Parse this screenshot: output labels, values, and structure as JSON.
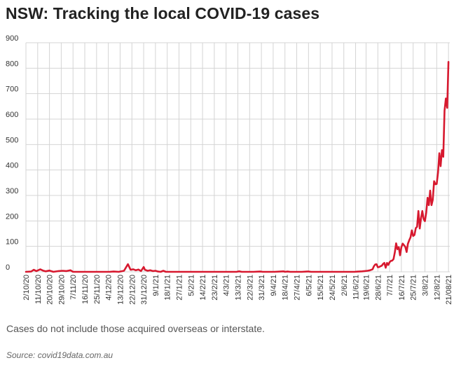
{
  "title": "NSW: Tracking the local COVID-19 cases",
  "note": "Cases do not include those acquired overseas or interstate.",
  "source": "Source: covid19data.com.au",
  "colors": {
    "line": "#d7192f",
    "grid": "#d4d4d4",
    "text": "#333333"
  },
  "chart_data": {
    "type": "line",
    "title": "NSW: Tracking the local COVID-19 cases",
    "xlabel": "",
    "ylabel": "",
    "ylim": [
      0,
      900
    ],
    "yticks": [
      0,
      100,
      200,
      300,
      400,
      500,
      600,
      700,
      800,
      900
    ],
    "xlim": [
      "2/10/20",
      "22/08/21"
    ],
    "grid": true,
    "legend": "none",
    "x_tick_labels": [
      "2/10/20",
      "11/10/20",
      "20/10/20",
      "29/10/20",
      "7/11/20",
      "16/11/20",
      "25/11/20",
      "4/12/20",
      "13/12/20",
      "22/12/20",
      "31/12/20",
      "9/1/21",
      "18/1/21",
      "27/1/21",
      "5/2/21",
      "14/2/21",
      "23/2/21",
      "4/3/21",
      "13/3/21",
      "22/3/21",
      "31/3/21",
      "9/4/21",
      "18/4/21",
      "27/4/21",
      "6/5/21",
      "15/5/21",
      "24/5/21",
      "2/6/21",
      "11/6/21",
      "19/6/21",
      "28/6/21",
      "7/7/21",
      "16/7/21",
      "25/7/21",
      "3/8/21",
      "12/8/21",
      "21/08/21"
    ],
    "series": [
      {
        "name": "",
        "color": "#d7192f",
        "points": [
          [
            "2/10/20",
            0
          ],
          [
            "6/10/20",
            1
          ],
          [
            "8/10/20",
            8
          ],
          [
            "10/10/20",
            3
          ],
          [
            "13/10/20",
            10
          ],
          [
            "15/10/20",
            5
          ],
          [
            "17/10/20",
            2
          ],
          [
            "20/10/20",
            5
          ],
          [
            "23/10/20",
            0
          ],
          [
            "27/10/20",
            3
          ],
          [
            "30/10/20",
            4
          ],
          [
            "2/11/20",
            3
          ],
          [
            "5/11/20",
            6
          ],
          [
            "7/11/20",
            0
          ],
          [
            "14/11/20",
            0
          ],
          [
            "22/11/20",
            0
          ],
          [
            "30/11/20",
            0
          ],
          [
            "5/12/20",
            0
          ],
          [
            "8/12/20",
            1
          ],
          [
            "12/12/20",
            0
          ],
          [
            "16/12/20",
            4
          ],
          [
            "19/12/20",
            30
          ],
          [
            "21/12/20",
            8
          ],
          [
            "23/12/20",
            10
          ],
          [
            "25/12/20",
            6
          ],
          [
            "27/12/20",
            9
          ],
          [
            "29/12/20",
            3
          ],
          [
            "31/12/20",
            19
          ],
          [
            "1/1/21",
            8
          ],
          [
            "3/1/21",
            4
          ],
          [
            "5/1/21",
            6
          ],
          [
            "7/1/21",
            3
          ],
          [
            "9/1/21",
            4
          ],
          [
            "11/1/21",
            1
          ],
          [
            "13/1/21",
            0
          ],
          [
            "15/1/21",
            4
          ],
          [
            "17/1/21",
            0
          ],
          [
            "20/1/21",
            0
          ],
          [
            "1/2/21",
            0
          ],
          [
            "10/2/21",
            0
          ],
          [
            "20/2/21",
            0
          ],
          [
            "1/3/21",
            0
          ],
          [
            "12/3/21",
            0
          ],
          [
            "14/3/21",
            2
          ],
          [
            "16/3/21",
            0
          ],
          [
            "25/3/21",
            0
          ],
          [
            "30/3/21",
            1
          ],
          [
            "1/4/21",
            0
          ],
          [
            "10/4/21",
            0
          ],
          [
            "17/4/21",
            2
          ],
          [
            "18/4/21",
            0
          ],
          [
            "20/4/21",
            1
          ],
          [
            "22/4/21",
            0
          ],
          [
            "1/5/21",
            0
          ],
          [
            "5/5/21",
            1
          ],
          [
            "6/5/21",
            1
          ],
          [
            "8/5/21",
            0
          ],
          [
            "20/5/21",
            0
          ],
          [
            "1/6/21",
            0
          ],
          [
            "10/6/21",
            0
          ],
          [
            "16/6/21",
            2
          ],
          [
            "18/6/21",
            3
          ],
          [
            "20/6/21",
            4
          ],
          [
            "22/6/21",
            6
          ],
          [
            "24/6/21",
            10
          ],
          [
            "25/6/21",
            22
          ],
          [
            "26/6/21",
            29
          ],
          [
            "27/6/21",
            30
          ],
          [
            "28/6/21",
            18
          ],
          [
            "29/6/21",
            19
          ],
          [
            "30/6/21",
            22
          ],
          [
            "1/7/21",
            24
          ],
          [
            "2/7/21",
            31
          ],
          [
            "3/7/21",
            35
          ],
          [
            "4/7/21",
            16
          ],
          [
            "5/7/21",
            35
          ],
          [
            "6/7/21",
            27
          ],
          [
            "7/7/21",
            38
          ],
          [
            "8/7/21",
            43
          ],
          [
            "9/7/21",
            44
          ],
          [
            "10/7/21",
            50
          ],
          [
            "11/7/21",
            77
          ],
          [
            "12/7/21",
            112
          ],
          [
            "13/7/21",
            89
          ],
          [
            "14/7/21",
            97
          ],
          [
            "15/7/21",
            65
          ],
          [
            "16/7/21",
            97
          ],
          [
            "17/7/21",
            111
          ],
          [
            "18/7/21",
            105
          ],
          [
            "19/7/21",
            98
          ],
          [
            "20/7/21",
            78
          ],
          [
            "21/7/21",
            110
          ],
          [
            "22/7/21",
            124
          ],
          [
            "23/7/21",
            136
          ],
          [
            "24/7/21",
            163
          ],
          [
            "25/7/21",
            141
          ],
          [
            "26/7/21",
            145
          ],
          [
            "27/7/21",
            172
          ],
          [
            "28/7/21",
            177
          ],
          [
            "29/7/21",
            239
          ],
          [
            "30/7/21",
            170
          ],
          [
            "31/7/21",
            210
          ],
          [
            "1/8/21",
            239
          ],
          [
            "2/8/21",
            207
          ],
          [
            "3/8/21",
            199
          ],
          [
            "4/8/21",
            233
          ],
          [
            "5/8/21",
            291
          ],
          [
            "6/8/21",
            262
          ],
          [
            "7/8/21",
            319
          ],
          [
            "8/8/21",
            262
          ],
          [
            "9/8/21",
            283
          ],
          [
            "10/8/21",
            356
          ],
          [
            "11/8/21",
            344
          ],
          [
            "12/8/21",
            345
          ],
          [
            "13/8/21",
            390
          ],
          [
            "14/8/21",
            466
          ],
          [
            "15/8/21",
            415
          ],
          [
            "16/8/21",
            478
          ],
          [
            "17/8/21",
            452
          ],
          [
            "18/8/21",
            633
          ],
          [
            "19/8/21",
            681
          ],
          [
            "20/8/21",
            644
          ],
          [
            "21/8/21",
            825
          ]
        ]
      }
    ]
  }
}
